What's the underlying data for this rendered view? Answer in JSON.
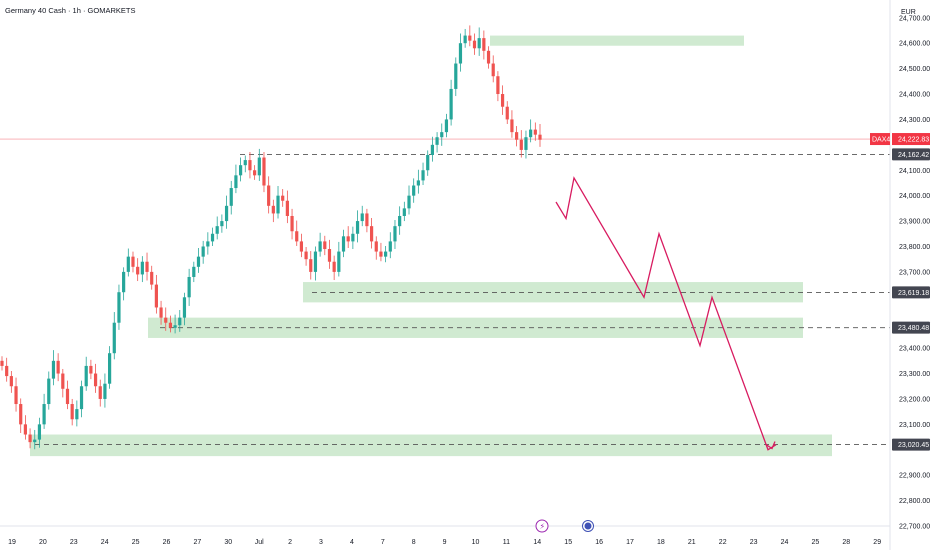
{
  "header": {
    "symbol_title": "Germany 40 Cash · 1h · GOMARKETS",
    "currency": "EUR"
  },
  "colors": {
    "up": "#26a69a",
    "down": "#ef5350",
    "zone": "#c8e6c9",
    "arrow": "#d81b60",
    "dash": "#555555",
    "label_bg": "#434651",
    "price_badge": "#f23645"
  },
  "chart_data": {
    "type": "candlestick",
    "ylim": [
      22700,
      24770
    ],
    "y_ticks": [
      {
        "value": 24700,
        "label": "24,700.00"
      },
      {
        "value": 24600,
        "label": "24,600.00"
      },
      {
        "value": 24500,
        "label": "24,500.00"
      },
      {
        "value": 24400,
        "label": "24,400.00"
      },
      {
        "value": 24300,
        "label": "24,300.00"
      },
      {
        "value": 24100,
        "label": "24,100.00"
      },
      {
        "value": 24000,
        "label": "24,000.00"
      },
      {
        "value": 23900,
        "label": "23,900.00"
      },
      {
        "value": 23800,
        "label": "23,800.00"
      },
      {
        "value": 23700,
        "label": "23,700.00"
      },
      {
        "value": 23400,
        "label": "23,400.00"
      },
      {
        "value": 23300,
        "label": "23,300.00"
      },
      {
        "value": 23200,
        "label": "23,200.00"
      },
      {
        "value": 23100,
        "label": "23,100.00"
      },
      {
        "value": 22900,
        "label": "22,900.00"
      },
      {
        "value": 22800,
        "label": "22,800.00"
      },
      {
        "value": 22700,
        "label": "22,700.00"
      }
    ],
    "x_labels": [
      "19",
      "20",
      "23",
      "24",
      "25",
      "26",
      "27",
      "30",
      "Jul",
      "2",
      "3",
      "4",
      "7",
      "8",
      "9",
      "10",
      "11",
      "14",
      "15",
      "16",
      "17",
      "18",
      "21",
      "22",
      "23",
      "24",
      "25",
      "28",
      "29"
    ],
    "current_price": {
      "symbol": "DAX40",
      "value": 24222.83,
      "label": "24,222.83"
    },
    "levels": [
      {
        "value": 24162.42,
        "label": "24,162.42"
      },
      {
        "value": 23619.18,
        "label": "23,619.18"
      },
      {
        "value": 23480.48,
        "label": "23,480.48"
      },
      {
        "value": 23020.45,
        "label": "23,020.45"
      }
    ],
    "zones": [
      {
        "x_from": "10",
        "x_to": "22",
        "y_low": 24590,
        "y_high": 24630
      },
      {
        "x_from": "2",
        "x_to": "24",
        "y_low": 23580,
        "y_high": 23660
      },
      {
        "x_from": "25",
        "x_to": "24",
        "y_low": 23440,
        "y_high": 23520
      },
      {
        "x_from": "19",
        "x_to": "25",
        "y_low": 22975,
        "y_high": 23060
      }
    ],
    "projection_path": [
      {
        "x": "14.5",
        "y": 23975
      },
      {
        "x": "14.8",
        "y": 23910
      },
      {
        "x": "15.1",
        "y": 24070
      },
      {
        "x": "17.3",
        "y": 23600
      },
      {
        "x": "18.1",
        "y": 23850
      },
      {
        "x": "20.2",
        "y": 23410
      },
      {
        "x": "21.3",
        "y": 23600
      },
      {
        "x": "23.1",
        "y": 23000
      },
      {
        "x": "23.4",
        "y": 23020
      }
    ],
    "series": [
      {
        "name": "",
        "type": "candles",
        "closes": [
          23330,
          23290,
          23250,
          23180,
          23100,
          23060,
          23030,
          23040,
          23100,
          23180,
          23280,
          23350,
          23300,
          23240,
          23180,
          23120,
          23160,
          23250,
          23330,
          23300,
          23250,
          23200,
          23260,
          23380,
          23500,
          23620,
          23700,
          23760,
          23720,
          23690,
          23740,
          23700,
          23650,
          23560,
          23520,
          23500,
          23480,
          23490,
          23520,
          23600,
          23680,
          23720,
          23760,
          23800,
          23820,
          23850,
          23880,
          23900,
          23960,
          24030,
          24080,
          24120,
          24140,
          24100,
          24080,
          24150,
          24040,
          23960,
          23930,
          24000,
          23980,
          23920,
          23860,
          23820,
          23780,
          23750,
          23700,
          23780,
          23820,
          23790,
          23740,
          23700,
          23780,
          23840,
          23820,
          23850,
          23900,
          23930,
          23880,
          23820,
          23780,
          23760,
          23780,
          23820,
          23880,
          23920,
          23950,
          24000,
          24040,
          24060,
          24100,
          24160,
          24200,
          24230,
          24250,
          24300,
          24420,
          24520,
          24600,
          24630,
          24610,
          24580,
          24620,
          24570,
          24520,
          24470,
          24400,
          24350,
          24300,
          24250,
          24220,
          24180,
          24230,
          24260,
          24240,
          24220
        ]
      }
    ]
  }
}
